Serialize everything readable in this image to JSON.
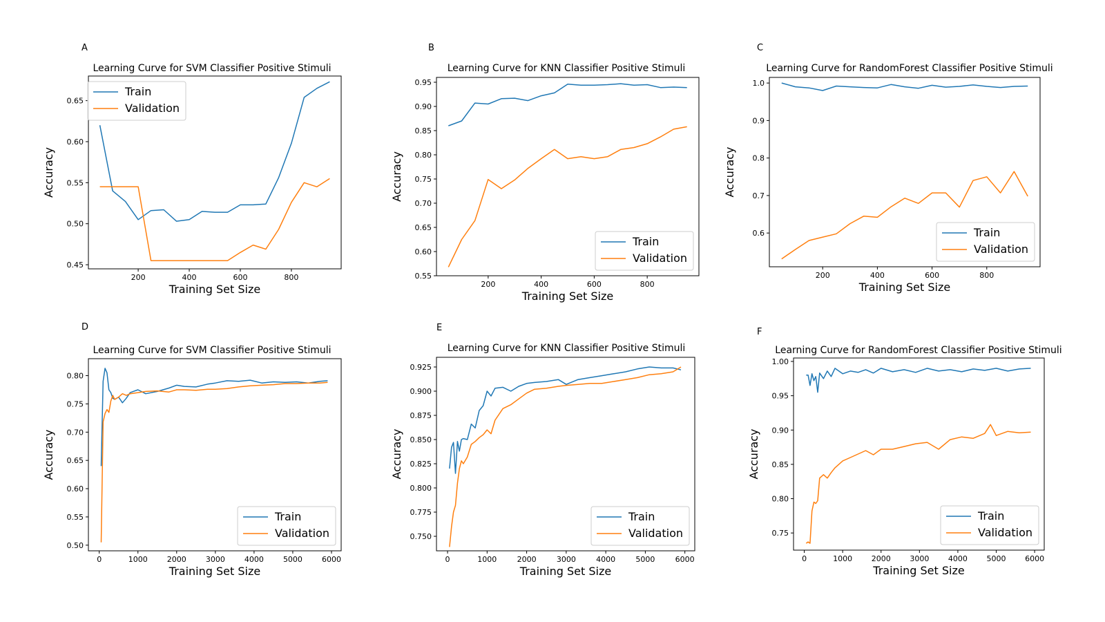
{
  "chart_data": [
    {
      "panel": "A",
      "type": "line",
      "title": "Learning Curve for SVM Classifier Positive Stimuli",
      "xlabel": "Training Set Size",
      "ylabel": "Accuracy",
      "xlim": [
        5,
        995
      ],
      "ylim": [
        0.445,
        0.68
      ],
      "xticks": [
        200,
        400,
        600,
        800
      ],
      "yticks": [
        0.45,
        0.5,
        0.55,
        0.6,
        0.65
      ],
      "ytick_labels": [
        "0.45",
        "0.50",
        "0.55",
        "0.60",
        "0.65"
      ],
      "legend_position": "upper left",
      "series": [
        {
          "name": "Train",
          "color": "#1f77b4",
          "x": [
            50,
            100,
            150,
            200,
            250,
            300,
            350,
            400,
            450,
            500,
            550,
            600,
            650,
            700,
            750,
            800,
            850,
            900,
            950
          ],
          "y": [
            0.62,
            0.54,
            0.527,
            0.505,
            0.516,
            0.517,
            0.503,
            0.505,
            0.515,
            0.514,
            0.514,
            0.523,
            0.523,
            0.524,
            0.556,
            0.598,
            0.654,
            0.665,
            0.673
          ]
        },
        {
          "name": "Validation",
          "color": "#ff7f0e",
          "x": [
            50,
            100,
            150,
            200,
            250,
            300,
            350,
            400,
            450,
            500,
            550,
            600,
            650,
            700,
            750,
            800,
            850,
            900,
            950
          ],
          "y": [
            0.545,
            0.545,
            0.545,
            0.545,
            0.455,
            0.455,
            0.455,
            0.455,
            0.455,
            0.455,
            0.455,
            0.465,
            0.474,
            0.469,
            0.493,
            0.526,
            0.55,
            0.545,
            0.555
          ]
        }
      ]
    },
    {
      "panel": "B",
      "type": "line",
      "title": "Learning Curve for KNN Classifier Positive Stimuli",
      "xlabel": "Training Set Size",
      "ylabel": "Accuracy",
      "xlim": [
        5,
        995
      ],
      "ylim": [
        0.55,
        0.96
      ],
      "xticks": [
        200,
        400,
        600,
        800
      ],
      "yticks": [
        0.55,
        0.6,
        0.65,
        0.7,
        0.75,
        0.8,
        0.85,
        0.9,
        0.95
      ],
      "ytick_labels": [
        "0.55",
        "0.60",
        "0.65",
        "0.70",
        "0.75",
        "0.80",
        "0.85",
        "0.90",
        "0.95"
      ],
      "legend_position": "lower right",
      "series": [
        {
          "name": "Train",
          "color": "#1f77b4",
          "x": [
            50,
            100,
            150,
            200,
            250,
            300,
            350,
            400,
            450,
            500,
            550,
            600,
            650,
            700,
            750,
            800,
            850,
            900,
            950
          ],
          "y": [
            0.86,
            0.87,
            0.907,
            0.905,
            0.916,
            0.917,
            0.912,
            0.922,
            0.928,
            0.946,
            0.944,
            0.944,
            0.945,
            0.947,
            0.944,
            0.945,
            0.939,
            0.94,
            0.939
          ]
        },
        {
          "name": "Validation",
          "color": "#ff7f0e",
          "x": [
            50,
            100,
            150,
            200,
            250,
            300,
            350,
            400,
            450,
            500,
            550,
            600,
            650,
            700,
            750,
            800,
            850,
            900,
            950
          ],
          "y": [
            0.568,
            0.625,
            0.664,
            0.749,
            0.73,
            0.748,
            0.772,
            0.792,
            0.811,
            0.792,
            0.796,
            0.792,
            0.796,
            0.811,
            0.815,
            0.823,
            0.837,
            0.853,
            0.858
          ]
        }
      ]
    },
    {
      "panel": "C",
      "type": "line",
      "title": "Learning Curve for RandomForest Classifier Positive Stimuli",
      "xlabel": "Training Set Size",
      "ylabel": "Accuracy",
      "xlim": [
        5,
        995
      ],
      "ylim": [
        0.51,
        1.015
      ],
      "xticks": [
        200,
        400,
        600,
        800
      ],
      "yticks": [
        0.6,
        0.7,
        0.8,
        0.9,
        1.0
      ],
      "ytick_labels": [
        "0.6",
        "0.7",
        "0.8",
        "0.9",
        "1.0"
      ],
      "legend_position": "lower right",
      "series": [
        {
          "name": "Train",
          "color": "#1f77b4",
          "x": [
            50,
            100,
            150,
            200,
            250,
            300,
            350,
            400,
            450,
            500,
            550,
            600,
            650,
            700,
            750,
            800,
            850,
            900,
            950
          ],
          "y": [
            1.0,
            0.99,
            0.987,
            0.98,
            0.992,
            0.99,
            0.988,
            0.987,
            0.996,
            0.99,
            0.986,
            0.994,
            0.989,
            0.991,
            0.995,
            0.991,
            0.988,
            0.991,
            0.992
          ]
        },
        {
          "name": "Validation",
          "color": "#ff7f0e",
          "x": [
            50,
            100,
            150,
            200,
            250,
            300,
            350,
            400,
            450,
            500,
            550,
            600,
            650,
            700,
            750,
            800,
            850,
            900,
            950
          ],
          "y": [
            0.531,
            0.556,
            0.58,
            0.589,
            0.598,
            0.625,
            0.645,
            0.642,
            0.67,
            0.693,
            0.679,
            0.707,
            0.707,
            0.669,
            0.74,
            0.75,
            0.707,
            0.764,
            0.698
          ]
        }
      ]
    },
    {
      "panel": "D",
      "type": "line",
      "title": "Learning Curve for SVM Classifier Positive Stimuli",
      "xlabel": "Training Set Size",
      "ylabel": "Accuracy",
      "xlim": [
        -280,
        6250
      ],
      "ylim": [
        0.49,
        0.83
      ],
      "xticks": [
        0,
        1000,
        2000,
        3000,
        4000,
        5000,
        6000
      ],
      "yticks": [
        0.5,
        0.55,
        0.6,
        0.65,
        0.7,
        0.75,
        0.8
      ],
      "ytick_labels": [
        "0.50",
        "0.55",
        "0.60",
        "0.65",
        "0.70",
        "0.75",
        "0.80"
      ],
      "legend_position": "lower right",
      "series": [
        {
          "name": "Train",
          "color": "#1f77b4",
          "x": [
            50,
            100,
            150,
            200,
            250,
            300,
            350,
            400,
            500,
            600,
            700,
            800,
            1000,
            1200,
            1500,
            1800,
            2000,
            2200,
            2500,
            2800,
            3000,
            3300,
            3600,
            3900,
            4200,
            4500,
            4800,
            5100,
            5400,
            5700,
            5900
          ],
          "y": [
            0.64,
            0.79,
            0.813,
            0.805,
            0.775,
            0.77,
            0.76,
            0.758,
            0.762,
            0.752,
            0.76,
            0.77,
            0.775,
            0.768,
            0.772,
            0.778,
            0.783,
            0.781,
            0.78,
            0.785,
            0.787,
            0.791,
            0.79,
            0.792,
            0.787,
            0.789,
            0.788,
            0.789,
            0.787,
            0.79,
            0.791
          ]
        },
        {
          "name": "Validation",
          "color": "#ff7f0e",
          "x": [
            50,
            100,
            150,
            200,
            250,
            300,
            350,
            400,
            500,
            600,
            700,
            800,
            1000,
            1200,
            1500,
            1800,
            2000,
            2200,
            2500,
            2800,
            3000,
            3300,
            3600,
            3900,
            4200,
            4500,
            4800,
            5100,
            5400,
            5700,
            5900
          ],
          "y": [
            0.505,
            0.718,
            0.733,
            0.74,
            0.735,
            0.755,
            0.765,
            0.758,
            0.762,
            0.768,
            0.765,
            0.768,
            0.77,
            0.772,
            0.773,
            0.771,
            0.775,
            0.775,
            0.774,
            0.776,
            0.776,
            0.777,
            0.78,
            0.782,
            0.783,
            0.784,
            0.786,
            0.786,
            0.787,
            0.787,
            0.788
          ]
        }
      ]
    },
    {
      "panel": "E",
      "type": "line",
      "title": "Learning Curve for KNN Classifier Positive Stimuli",
      "xlabel": "Training Set Size",
      "ylabel": "Accuracy",
      "xlim": [
        -280,
        6250
      ],
      "ylim": [
        0.735,
        0.935
      ],
      "xticks": [
        0,
        1000,
        2000,
        3000,
        4000,
        5000,
        6000
      ],
      "yticks": [
        0.75,
        0.775,
        0.8,
        0.825,
        0.85,
        0.875,
        0.9,
        0.925
      ],
      "ytick_labels": [
        "0.750",
        "0.775",
        "0.800",
        "0.825",
        "0.850",
        "0.875",
        "0.900",
        "0.925"
      ],
      "legend_position": "lower right",
      "series": [
        {
          "name": "Train",
          "color": "#1f77b4",
          "x": [
            50,
            100,
            150,
            200,
            250,
            300,
            350,
            400,
            500,
            600,
            700,
            800,
            900,
            1000,
            1100,
            1200,
            1400,
            1600,
            1800,
            2000,
            2200,
            2500,
            2800,
            3000,
            3300,
            3600,
            3900,
            4200,
            4500,
            4800,
            5100,
            5400,
            5700,
            5900
          ],
          "y": [
            0.82,
            0.842,
            0.847,
            0.815,
            0.848,
            0.838,
            0.85,
            0.851,
            0.85,
            0.866,
            0.862,
            0.88,
            0.885,
            0.9,
            0.895,
            0.903,
            0.904,
            0.9,
            0.905,
            0.908,
            0.909,
            0.91,
            0.912,
            0.907,
            0.912,
            0.914,
            0.916,
            0.918,
            0.92,
            0.923,
            0.925,
            0.924,
            0.924,
            0.922
          ]
        },
        {
          "name": "Validation",
          "color": "#ff7f0e",
          "x": [
            50,
            100,
            150,
            200,
            250,
            300,
            350,
            400,
            500,
            600,
            700,
            800,
            900,
            1000,
            1100,
            1200,
            1400,
            1600,
            1800,
            2000,
            2200,
            2500,
            2800,
            3000,
            3300,
            3600,
            3900,
            4200,
            4500,
            4800,
            5100,
            5400,
            5700,
            5900
          ],
          "y": [
            0.739,
            0.76,
            0.775,
            0.782,
            0.805,
            0.82,
            0.828,
            0.825,
            0.832,
            0.845,
            0.848,
            0.852,
            0.855,
            0.86,
            0.856,
            0.87,
            0.882,
            0.886,
            0.892,
            0.898,
            0.902,
            0.903,
            0.905,
            0.906,
            0.907,
            0.908,
            0.908,
            0.91,
            0.912,
            0.914,
            0.917,
            0.918,
            0.92,
            0.925
          ]
        }
      ]
    },
    {
      "panel": "F",
      "type": "line",
      "title": "Learning Curve for RandomForest Classifier Positive Stimuli",
      "xlabel": "Training Set Size",
      "ylabel": "Accuracy",
      "xlim": [
        -280,
        6250
      ],
      "ylim": [
        0.725,
        1.005
      ],
      "xticks": [
        0,
        1000,
        2000,
        3000,
        4000,
        5000,
        6000
      ],
      "yticks": [
        0.75,
        0.8,
        0.85,
        0.9,
        0.95,
        1.0
      ],
      "ytick_labels": [
        "0.75",
        "0.80",
        "0.85",
        "0.90",
        "0.95",
        "1.00"
      ],
      "legend_position": "lower right",
      "series": [
        {
          "name": "Train",
          "color": "#1f77b4",
          "x": [
            50,
            100,
            150,
            200,
            250,
            300,
            350,
            400,
            500,
            600,
            700,
            800,
            1000,
            1200,
            1400,
            1600,
            1800,
            2000,
            2300,
            2600,
            2900,
            3200,
            3500,
            3800,
            4100,
            4400,
            4700,
            5000,
            5300,
            5600,
            5900
          ],
          "y": [
            0.98,
            0.98,
            0.965,
            0.982,
            0.972,
            0.978,
            0.955,
            0.983,
            0.975,
            0.986,
            0.978,
            0.99,
            0.982,
            0.986,
            0.984,
            0.988,
            0.983,
            0.99,
            0.985,
            0.988,
            0.984,
            0.99,
            0.986,
            0.988,
            0.985,
            0.989,
            0.987,
            0.99,
            0.986,
            0.989,
            0.99
          ]
        },
        {
          "name": "Validation",
          "color": "#ff7f0e",
          "x": [
            50,
            100,
            150,
            200,
            250,
            300,
            350,
            400,
            500,
            600,
            700,
            800,
            1000,
            1200,
            1400,
            1600,
            1800,
            2000,
            2300,
            2600,
            2900,
            3200,
            3500,
            3800,
            4100,
            4400,
            4700,
            4850,
            5000,
            5300,
            5600,
            5900
          ],
          "y": [
            0.735,
            0.737,
            0.735,
            0.782,
            0.795,
            0.793,
            0.797,
            0.83,
            0.835,
            0.83,
            0.838,
            0.845,
            0.855,
            0.86,
            0.865,
            0.87,
            0.864,
            0.872,
            0.872,
            0.876,
            0.88,
            0.882,
            0.872,
            0.886,
            0.89,
            0.888,
            0.895,
            0.908,
            0.892,
            0.898,
            0.896,
            0.897
          ]
        }
      ]
    }
  ]
}
